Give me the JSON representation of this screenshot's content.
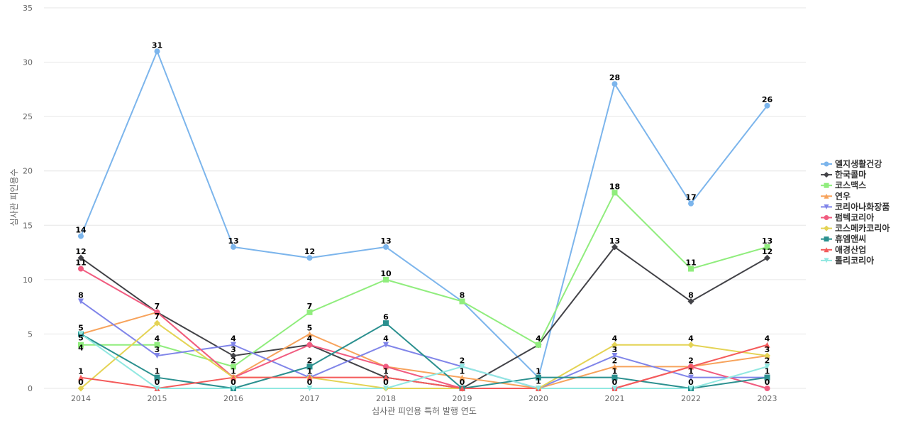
{
  "chart_data": {
    "type": "line",
    "xlabel": "심사관 피인용 특허 발행 연도",
    "ylabel": "심사관 피인용수",
    "ylim": [
      0,
      35
    ],
    "yticks": [
      0,
      5,
      10,
      15,
      20,
      25,
      30,
      35
    ],
    "grid": true,
    "legend_position": "right",
    "x": [
      "2014",
      "2015",
      "2016",
      "2017",
      "2018",
      "2019",
      "2020",
      "2021",
      "2022",
      "2023"
    ],
    "series": [
      {
        "name": "엘지생활건강",
        "color": "#7cb5ec",
        "marker": "circle",
        "values": [
          14,
          31,
          13,
          12,
          13,
          8,
          1,
          28,
          17,
          26
        ]
      },
      {
        "name": "한국콜마",
        "color": "#434348",
        "marker": "diamond",
        "values": [
          12,
          7,
          3,
          4,
          1,
          0,
          4,
          13,
          8,
          12
        ]
      },
      {
        "name": "코스맥스",
        "color": "#90ed7d",
        "marker": "square",
        "values": [
          4,
          4,
          2,
          7,
          10,
          8,
          4,
          18,
          11,
          13
        ]
      },
      {
        "name": "연우",
        "color": "#f7a35c",
        "marker": "triangle",
        "values": [
          5,
          7,
          1,
          5,
          2,
          1,
          0,
          2,
          2,
          3
        ]
      },
      {
        "name": "코리아나화장품",
        "color": "#8085e9",
        "marker": "triangle-down",
        "values": [
          8,
          3,
          4,
          1,
          4,
          2,
          0,
          3,
          1,
          1
        ]
      },
      {
        "name": "펌텍코리아",
        "color": "#f15c80",
        "marker": "circle",
        "values": [
          11,
          7,
          1,
          4,
          2,
          0,
          0,
          0,
          2,
          0
        ]
      },
      {
        "name": "코스메카코리아",
        "color": "#e4d354",
        "marker": "diamond",
        "values": [
          0,
          6,
          1,
          1,
          0,
          0,
          0,
          4,
          4,
          3
        ]
      },
      {
        "name": "휴엠앤씨",
        "color": "#2b908f",
        "marker": "square",
        "values": [
          5,
          1,
          0,
          2,
          6,
          0,
          1,
          1,
          0,
          1
        ]
      },
      {
        "name": "애경산업",
        "color": "#f45b5b",
        "marker": "triangle",
        "values": [
          1,
          0,
          1,
          1,
          1,
          0,
          0,
          0,
          2,
          4
        ]
      },
      {
        "name": "톨리코리아",
        "color": "#91e8e1",
        "marker": "triangle-down",
        "values": [
          5,
          0,
          0,
          0,
          0,
          2,
          0,
          0,
          0,
          2
        ]
      }
    ],
    "data_labels": [
      {
        "x": "2014",
        "series": [
          "엘지생활건강",
          "한국콜마",
          "코스맥스",
          "연우",
          "코리아나화장품",
          "펌텍코리아",
          "코스메카코리아",
          "휴엠앤씨",
          "애경산업"
        ]
      },
      {
        "x": "2015",
        "series": [
          "엘지생활건강",
          "한국콜마",
          "코스맥스",
          "연우",
          "코리아나화장품",
          "휴엠앤씨",
          "애경산업"
        ]
      },
      {
        "x": "2016",
        "series": [
          "엘지생활건강",
          "한국콜마",
          "코스맥스",
          "코리아나화장품",
          "코스메카코리아",
          "휴엠앤씨"
        ]
      },
      {
        "x": "2017",
        "series": [
          "엘지생활건강",
          "한국콜마",
          "코스맥스",
          "연우",
          "코리아나화장품",
          "휴엠앤씨",
          "톨리코리아"
        ]
      },
      {
        "x": "2018",
        "series": [
          "엘지생활건강",
          "코스맥스",
          "코리아나화장품",
          "휴엠앤씨",
          "애경산업",
          "코스메카코리아"
        ]
      },
      {
        "x": "2019",
        "series": [
          "엘지생활건강",
          "코리아나화장품",
          "연우",
          "휴엠앤씨"
        ]
      },
      {
        "x": "2020",
        "series": [
          "엘지생활건강",
          "한국콜마",
          "휴엠앤씨"
        ]
      },
      {
        "x": "2021",
        "series": [
          "엘지생활건강",
          "코스맥스",
          "한국콜마",
          "코스메카코리아",
          "코리아나화장품",
          "연우",
          "휴엠앤씨",
          "애경산업"
        ]
      },
      {
        "x": "2022",
        "series": [
          "엘지생활건강",
          "코스맥스",
          "한국콜마",
          "코스메카코리아",
          "연우",
          "코리아나화장품",
          "휴엠앤씨"
        ]
      },
      {
        "x": "2023",
        "series": [
          "엘지생활건강",
          "코스맥스",
          "한국콜마",
          "애경산업",
          "코스메카코리아",
          "톨리코리아",
          "휴엠앤씨",
          "펌텍코리아"
        ]
      }
    ]
  }
}
